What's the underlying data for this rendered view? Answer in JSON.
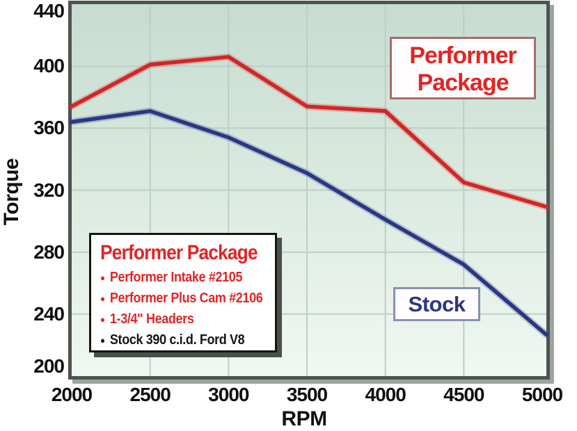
{
  "chart_data": {
    "type": "line",
    "x": [
      2000,
      2500,
      3000,
      3500,
      4000,
      4500,
      5000
    ],
    "x_tick_labels": [
      "2000",
      "2500",
      "3000",
      "3500",
      "4000",
      "4500",
      "5000"
    ],
    "y_ticks": [
      440,
      400,
      360,
      320,
      280,
      240,
      200
    ],
    "ylim": [
      200,
      440
    ],
    "xlabel": "RPM",
    "ylabel": "Torque",
    "grid": true,
    "series": [
      {
        "name": "Performer Package",
        "color": "#d22626",
        "values": [
          374,
          401,
          406,
          374,
          371,
          325,
          310
        ]
      },
      {
        "name": "Stock",
        "color": "#2a3785",
        "values": [
          364,
          371,
          354,
          331,
          301,
          272,
          229
        ]
      }
    ]
  },
  "annotations": {
    "performer_label": {
      "line1": "Performer",
      "line2": "Package",
      "text_color": "#e12525",
      "border_color": "#a96a6a"
    },
    "stock_label": {
      "text": "Stock",
      "text_color": "#2a3785",
      "border_color": "#8591b5"
    }
  },
  "spec_box": {
    "title": "Performer Package",
    "title_color": "#e12525",
    "items": [
      {
        "text": "Performer Intake #2105",
        "color": "#e12525"
      },
      {
        "text": "Performer Plus Cam #2106",
        "color": "#e12525"
      },
      {
        "text": "1-3/4\" Headers",
        "color": "#e12525"
      },
      {
        "text": "Stock 390 c.i.d. Ford V8",
        "color": "#151515"
      }
    ]
  },
  "colors": {
    "grid": "#bccfc5",
    "plot_border": "#4d5450",
    "plot_shadow": "#9aa69f",
    "plot_bg_top": "#c6dcd1",
    "plot_bg_mid": "#d9e9de",
    "plot_bg_bottom": "#f1f7f2",
    "axis_text": "#101010",
    "figure_bg": "#ffffff"
  }
}
